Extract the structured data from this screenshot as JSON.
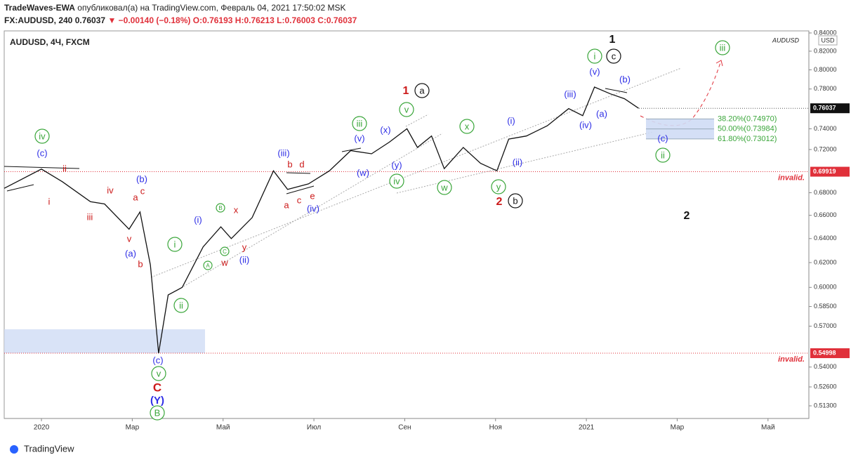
{
  "header": {
    "author": "TradeWaves-EWA",
    "published": "опубликовал(а) на TradingView.com, Февраль 04, 2021 17:50:02 MSK",
    "symbol": "FX:AUDUSD, 240",
    "last": "0.76037",
    "change": "▼ −0.00140 (−0.18%)",
    "ohlc": "O:0.76193 H:0.76213 L:0.76003 C:0.76037"
  },
  "footer": {
    "brand": "TradingView"
  },
  "chart_data": {
    "type": "line",
    "title": "AUDUSD, 4Ч, FXCM",
    "symbol_label": "AUDUSD",
    "currency": "USD",
    "color": "#111111",
    "log_scale": true,
    "x": [
      -0.82,
      0,
      0.46,
      1.08,
      1.39,
      1.93,
      2.17,
      2.4,
      2.58,
      2.79,
      3.1,
      3.56,
      3.95,
      4.18,
      4.64,
      5.11,
      5.42,
      5.88,
      6.34,
      6.81,
      7.27,
      7.66,
      8.05,
      8.28,
      8.59,
      8.87,
      9.29,
      9.67,
      10.03,
      10.29,
      10.68,
      11.14,
      11.61,
      11.92,
      12.18,
      12.53,
      12.84,
      13.15
    ],
    "values": [
      0.684,
      0.7016,
      0.69,
      0.672,
      0.67,
      0.648,
      0.663,
      0.618,
      0.55,
      0.594,
      0.6,
      0.633,
      0.65,
      0.64,
      0.658,
      0.7,
      0.683,
      0.688,
      0.7,
      0.719,
      0.716,
      0.727,
      0.74,
      0.722,
      0.733,
      0.702,
      0.722,
      0.707,
      0.7,
      0.73,
      0.733,
      0.743,
      0.76,
      0.753,
      0.782,
      0.775,
      0.77,
      0.76037
    ],
    "xlim": [
      -0.82,
      16.9
    ],
    "xticks": [
      {
        "value": 0,
        "label": "2020"
      },
      {
        "value": 2,
        "label": "Мар"
      },
      {
        "value": 4,
        "label": "Май"
      },
      {
        "value": 6,
        "label": "Июл"
      },
      {
        "value": 8,
        "label": "Сен"
      },
      {
        "value": 10,
        "label": "Ноя"
      },
      {
        "value": 12,
        "label": "2021"
      },
      {
        "value": 14,
        "label": "Мар"
      },
      {
        "value": 16,
        "label": "Май"
      }
    ],
    "ylim": [
      0.5045,
      0.8423
    ],
    "yticks": [
      {
        "value": 0.84,
        "label": "0.84000"
      },
      {
        "value": 0.82,
        "label": "0.82000"
      },
      {
        "value": 0.8,
        "label": "0.80000"
      },
      {
        "value": 0.78,
        "label": "0.78000"
      },
      {
        "value": 0.74,
        "label": "0.74000"
      },
      {
        "value": 0.72,
        "label": "0.72000"
      },
      {
        "value": 0.68,
        "label": "0.68000"
      },
      {
        "value": 0.66,
        "label": "0.66000"
      },
      {
        "value": 0.64,
        "label": "0.64000"
      },
      {
        "value": 0.62,
        "label": "0.62000"
      },
      {
        "value": 0.6,
        "label": "0.60000"
      },
      {
        "value": 0.585,
        "label": "0.58500"
      },
      {
        "value": 0.57,
        "label": "0.57000"
      },
      {
        "value": 0.54,
        "label": "0.54000"
      },
      {
        "value": 0.526,
        "label": "0.52600"
      },
      {
        "value": 0.513,
        "label": "0.51300"
      }
    ],
    "last_price": 0.76037,
    "levels": [
      {
        "value": 0.69919,
        "note": "invalid."
      },
      {
        "value": 0.54998,
        "note": "invalid."
      }
    ],
    "fib": [
      {
        "value": 0.7497,
        "label": "38.20%(0.74970)"
      },
      {
        "value": 0.73984,
        "label": "50.00%(0.73984)"
      },
      {
        "value": 0.73012,
        "label": "61.80%(0.73012)"
      }
    ],
    "annotations": [
      {
        "text": "1",
        "color": "#111"
      },
      {
        "text": "i",
        "color": "#3aa63a"
      },
      {
        "text": "c",
        "color": "#111"
      },
      {
        "text": "(v)",
        "color": "#2e2ee6"
      },
      {
        "text": "(b)",
        "color": "#2e2ee6"
      },
      {
        "text": "(iii)",
        "color": "#2e2ee6"
      },
      {
        "text": "(a)",
        "color": "#2e2ee6"
      },
      {
        "text": "(iv)",
        "color": "#2e2ee6"
      },
      {
        "text": "iii",
        "color": "#3aa63a"
      },
      {
        "text": "1",
        "color": "#cc1a1a"
      },
      {
        "text": "a",
        "color": "#111"
      },
      {
        "text": "v",
        "color": "#3aa63a"
      },
      {
        "text": "x",
        "color": "#3aa63a"
      },
      {
        "text": "(i)",
        "color": "#2e2ee6"
      },
      {
        "text": "(x)",
        "color": "#2e2ee6"
      },
      {
        "text": "(v)",
        "color": "#2e2ee6"
      },
      {
        "text": "iii",
        "color": "#3aa63a"
      },
      {
        "text": "(y)",
        "color": "#2e2ee6"
      },
      {
        "text": "iv",
        "color": "#3aa63a"
      },
      {
        "text": "(w)",
        "color": "#2e2ee6"
      },
      {
        "text": "w",
        "color": "#3aa63a"
      },
      {
        "text": "y",
        "color": "#3aa63a"
      },
      {
        "text": "(ii)",
        "color": "#2e2ee6"
      },
      {
        "text": "2",
        "color": "#cc1a1a"
      },
      {
        "text": "b",
        "color": "#111"
      },
      {
        "text": "(c)",
        "color": "#2e2ee6"
      },
      {
        "text": "ii",
        "color": "#3aa63a"
      },
      {
        "text": "2",
        "color": "#111"
      },
      {
        "text": "iv",
        "color": "#3aa63a"
      },
      {
        "text": "(c)",
        "color": "#2e2ee6"
      },
      {
        "text": "ii",
        "color": "#cc1a1a"
      },
      {
        "text": "i",
        "color": "#cc1a1a"
      },
      {
        "text": "iv",
        "color": "#cc1a1a"
      },
      {
        "text": "iii",
        "color": "#cc1a1a"
      },
      {
        "text": "(b)",
        "color": "#2e2ee6"
      },
      {
        "text": "c",
        "color": "#cc1a1a"
      },
      {
        "text": "a",
        "color": "#cc1a1a"
      },
      {
        "text": "v",
        "color": "#cc1a1a"
      },
      {
        "text": "(a)",
        "color": "#2e2ee6"
      },
      {
        "text": "b",
        "color": "#cc1a1a"
      },
      {
        "text": "(iii)",
        "color": "#2e2ee6"
      },
      {
        "text": "b",
        "color": "#cc1a1a"
      },
      {
        "text": "d",
        "color": "#cc1a1a"
      },
      {
        "text": "a",
        "color": "#cc1a1a"
      },
      {
        "text": "c",
        "color": "#cc1a1a"
      },
      {
        "text": "e",
        "color": "#cc1a1a"
      },
      {
        "text": "(iv)",
        "color": "#2e2ee6"
      },
      {
        "text": "(i)",
        "color": "#2e2ee6"
      },
      {
        "text": "i",
        "color": "#3aa63a"
      },
      {
        "text": "B",
        "color": "#3aa63a"
      },
      {
        "text": "x",
        "color": "#cc1a1a"
      },
      {
        "text": "C",
        "color": "#3aa63a"
      },
      {
        "text": "y",
        "color": "#cc1a1a"
      },
      {
        "text": "A",
        "color": "#3aa63a"
      },
      {
        "text": "w",
        "color": "#cc1a1a"
      },
      {
        "text": "(ii)",
        "color": "#2e2ee6"
      },
      {
        "text": "ii",
        "color": "#3aa63a"
      },
      {
        "text": "(c)",
        "color": "#2e2ee6"
      },
      {
        "text": "v",
        "color": "#3aa63a"
      },
      {
        "text": "C",
        "color": "#cc1a1a"
      },
      {
        "text": "(Y)",
        "color": "#2e2ee6"
      },
      {
        "text": "B",
        "color": "#3aa63a"
      }
    ]
  }
}
